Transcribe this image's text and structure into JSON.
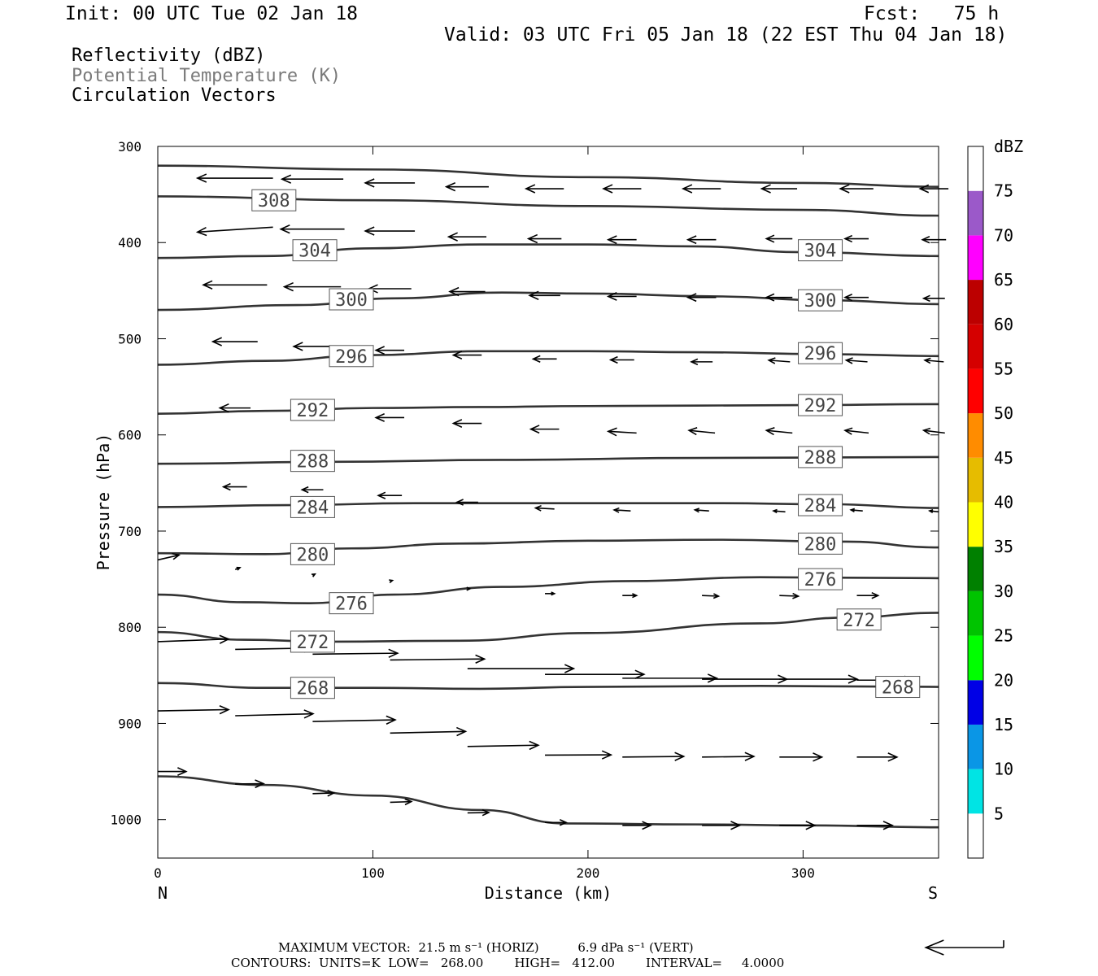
{
  "header": {
    "init": "Init: 00 UTC Tue 02 Jan 18",
    "fcst": "Fcst:   75 h",
    "valid": "Valid: 03 UTC Fri 05 Jan 18 (22 EST Thu 04 Jan 18)",
    "fields": [
      {
        "text": "Reflectivity (dBZ)",
        "color": "#000000"
      },
      {
        "text": "Potential Temperature (K)",
        "color": "#7a7a7a"
      },
      {
        "text": "Circulation Vectors",
        "color": "#000000"
      }
    ]
  },
  "footer": {
    "max_vector_line": "MAXIMUM VECTOR:  21.5 m s⁻¹ (HORIZ)          6.9 dPa s⁻¹ (VERT)",
    "contours_line": "CONTOURS:  UNITS=K  LOW=   268.00        HIGH=   412.00        INTERVAL=     4.0000"
  },
  "chart_data": {
    "type": "cross-section",
    "xlabel": "Distance (km)",
    "ylabel": "Pressure (hPa)",
    "xlim": [
      0,
      363
    ],
    "ylim": [
      1040,
      300
    ],
    "x_ticks": [
      0,
      100,
      200,
      300
    ],
    "y_ticks": [
      300,
      400,
      500,
      600,
      700,
      800,
      900,
      1000
    ],
    "x_end_labels": {
      "left": "N",
      "right": "S"
    },
    "colorbar": {
      "title": "dBZ",
      "ticks": [
        5,
        10,
        15,
        20,
        25,
        30,
        35,
        40,
        45,
        50,
        55,
        60,
        65,
        70,
        75
      ],
      "colors": [
        "#ffffff",
        "#00e4e4",
        "#0a96e6",
        "#0000e6",
        "#00ff00",
        "#00c400",
        "#008000",
        "#ffff00",
        "#e6bc00",
        "#ff8c00",
        "#ff0000",
        "#d50000",
        "#bc0000",
        "#ff00ff",
        "#9b59c9",
        "#ffffff"
      ]
    },
    "theta_contours": [
      {
        "label": "308",
        "points": [
          [
            0,
            320
          ],
          [
            100,
            324
          ],
          [
            200,
            332
          ],
          [
            300,
            338
          ],
          [
            363,
            342
          ]
        ]
      },
      {
        "label": "",
        "points": [
          [
            0,
            352
          ],
          [
            100,
            356
          ],
          [
            200,
            362
          ],
          [
            300,
            366
          ],
          [
            363,
            372
          ]
        ]
      },
      {
        "label": "304",
        "points": [
          [
            0,
            416
          ],
          [
            50,
            414
          ],
          [
            100,
            406
          ],
          [
            150,
            402
          ],
          [
            200,
            402
          ],
          [
            250,
            404
          ],
          [
            300,
            410
          ],
          [
            363,
            414
          ]
        ]
      },
      {
        "label": "300",
        "points": [
          [
            0,
            470
          ],
          [
            65,
            465
          ],
          [
            110,
            458
          ],
          [
            160,
            452
          ],
          [
            200,
            453
          ],
          [
            260,
            456
          ],
          [
            310,
            460
          ],
          [
            363,
            464
          ]
        ]
      },
      {
        "label": "296",
        "points": [
          [
            0,
            527
          ],
          [
            50,
            523
          ],
          [
            100,
            517
          ],
          [
            150,
            513
          ],
          [
            200,
            513
          ],
          [
            250,
            514
          ],
          [
            310,
            516
          ],
          [
            363,
            518
          ]
        ]
      },
      {
        "label": "292",
        "points": [
          [
            0,
            578
          ],
          [
            50,
            575
          ],
          [
            100,
            572
          ],
          [
            150,
            571
          ],
          [
            200,
            570
          ],
          [
            300,
            569
          ],
          [
            363,
            568
          ]
        ]
      },
      {
        "label": "288",
        "points": [
          [
            0,
            630
          ],
          [
            80,
            628
          ],
          [
            160,
            626
          ],
          [
            250,
            624
          ],
          [
            363,
            623
          ]
        ]
      },
      {
        "label": "284",
        "points": [
          [
            0,
            675
          ],
          [
            60,
            673
          ],
          [
            120,
            671
          ],
          [
            200,
            671
          ],
          [
            260,
            671
          ],
          [
            310,
            672
          ],
          [
            363,
            676
          ]
        ]
      },
      {
        "label": "280",
        "points": [
          [
            0,
            723
          ],
          [
            50,
            724
          ],
          [
            90,
            718
          ],
          [
            140,
            713
          ],
          [
            200,
            710
          ],
          [
            260,
            709
          ],
          [
            320,
            711
          ],
          [
            363,
            717
          ]
        ]
      },
      {
        "label": "276",
        "points": [
          [
            0,
            766
          ],
          [
            40,
            774
          ],
          [
            70,
            775
          ],
          [
            110,
            766
          ],
          [
            160,
            758
          ],
          [
            220,
            752
          ],
          [
            280,
            748
          ],
          [
            363,
            749
          ]
        ]
      },
      {
        "label": "272",
        "points": [
          [
            0,
            805
          ],
          [
            40,
            813
          ],
          [
            80,
            815
          ],
          [
            140,
            814
          ],
          [
            200,
            806
          ],
          [
            280,
            796
          ],
          [
            320,
            790
          ],
          [
            363,
            785
          ]
        ]
      },
      {
        "label": "268",
        "points": [
          [
            0,
            858
          ],
          [
            50,
            863
          ],
          [
            100,
            863
          ],
          [
            150,
            864
          ],
          [
            200,
            862
          ],
          [
            280,
            861
          ],
          [
            363,
            862
          ]
        ]
      },
      {
        "label": "",
        "points": [
          [
            0,
            955
          ],
          [
            50,
            964
          ],
          [
            100,
            975
          ],
          [
            150,
            990
          ],
          [
            190,
            1004
          ],
          [
            250,
            1005
          ],
          [
            300,
            1006
          ],
          [
            363,
            1008
          ]
        ]
      }
    ],
    "theta_labels": [
      {
        "text": "308",
        "x": 54,
        "p": 356
      },
      {
        "text": "304",
        "x": 73,
        "p": 408
      },
      {
        "text": "304",
        "x": 308,
        "p": 408
      },
      {
        "text": "300",
        "x": 90,
        "p": 459
      },
      {
        "text": "300",
        "x": 308,
        "p": 460
      },
      {
        "text": "296",
        "x": 90,
        "p": 518
      },
      {
        "text": "296",
        "x": 308,
        "p": 515
      },
      {
        "text": "292",
        "x": 72,
        "p": 574
      },
      {
        "text": "292",
        "x": 308,
        "p": 569
      },
      {
        "text": "288",
        "x": 72,
        "p": 627
      },
      {
        "text": "288",
        "x": 308,
        "p": 623
      },
      {
        "text": "284",
        "x": 72,
        "p": 675
      },
      {
        "text": "284",
        "x": 308,
        "p": 673
      },
      {
        "text": "280",
        "x": 72,
        "p": 724
      },
      {
        "text": "280",
        "x": 308,
        "p": 713
      },
      {
        "text": "276",
        "x": 90,
        "p": 775
      },
      {
        "text": "276",
        "x": 308,
        "p": 750
      },
      {
        "text": "272",
        "x": 72,
        "p": 815
      },
      {
        "text": "272",
        "x": 326,
        "p": 792
      },
      {
        "text": "268",
        "x": 72,
        "p": 863
      },
      {
        "text": "268",
        "x": 344,
        "p": 862
      }
    ],
    "vectors": [
      {
        "x": 36,
        "p": 333,
        "u": -32,
        "w": 0
      },
      {
        "x": 72,
        "p": 334,
        "u": -26,
        "w": 0
      },
      {
        "x": 108,
        "p": 338,
        "u": -21,
        "w": 0
      },
      {
        "x": 144,
        "p": 342,
        "u": -18,
        "w": 0
      },
      {
        "x": 180,
        "p": 344,
        "u": -16,
        "w": 0
      },
      {
        "x": 216,
        "p": 344,
        "u": -16,
        "w": 0
      },
      {
        "x": 253,
        "p": 344,
        "u": -16,
        "w": 0
      },
      {
        "x": 289,
        "p": 344,
        "u": -15,
        "w": 0
      },
      {
        "x": 325,
        "p": 344,
        "u": -14,
        "w": 0
      },
      {
        "x": 361,
        "p": 344,
        "u": -12,
        "w": 0
      },
      {
        "x": 36,
        "p": 384,
        "u": -32,
        "w": -1.5
      },
      {
        "x": 72,
        "p": 386,
        "u": -27,
        "w": 0
      },
      {
        "x": 108,
        "p": 388,
        "u": -21,
        "w": 0
      },
      {
        "x": 144,
        "p": 394,
        "u": -16,
        "w": 0
      },
      {
        "x": 180,
        "p": 396,
        "u": -14,
        "w": 0
      },
      {
        "x": 216,
        "p": 397,
        "u": -12,
        "w": 0
      },
      {
        "x": 253,
        "p": 397,
        "u": -12,
        "w": 0
      },
      {
        "x": 289,
        "p": 396,
        "u": -11,
        "w": 0
      },
      {
        "x": 325,
        "p": 396,
        "u": -10,
        "w": 0
      },
      {
        "x": 361,
        "p": 397,
        "u": -10,
        "w": 0
      },
      {
        "x": 36,
        "p": 444,
        "u": -27,
        "w": 0
      },
      {
        "x": 72,
        "p": 446,
        "u": -24,
        "w": 0
      },
      {
        "x": 108,
        "p": 448,
        "u": -18,
        "w": 0
      },
      {
        "x": 144,
        "p": 451,
        "u": -15,
        "w": 0
      },
      {
        "x": 180,
        "p": 455,
        "u": -13,
        "w": 0
      },
      {
        "x": 216,
        "p": 456,
        "u": -12,
        "w": 0
      },
      {
        "x": 253,
        "p": 457,
        "u": -12,
        "w": 0
      },
      {
        "x": 289,
        "p": 457,
        "u": -11,
        "w": 0
      },
      {
        "x": 325,
        "p": 457,
        "u": -10,
        "w": 0
      },
      {
        "x": 361,
        "p": 458,
        "u": -9,
        "w": 0
      },
      {
        "x": 36,
        "p": 503,
        "u": -19,
        "w": 0
      },
      {
        "x": 72,
        "p": 508,
        "u": -16,
        "w": 0
      },
      {
        "x": 108,
        "p": 512,
        "u": -12,
        "w": 0
      },
      {
        "x": 144,
        "p": 517,
        "u": -12,
        "w": 0
      },
      {
        "x": 180,
        "p": 521,
        "u": -10,
        "w": 0
      },
      {
        "x": 216,
        "p": 522,
        "u": -10,
        "w": 0
      },
      {
        "x": 253,
        "p": 524,
        "u": -9,
        "w": 0
      },
      {
        "x": 289,
        "p": 524,
        "u": -9,
        "w": 0.5
      },
      {
        "x": 325,
        "p": 524,
        "u": -9,
        "w": 0.5
      },
      {
        "x": 361,
        "p": 524,
        "u": -8,
        "w": 0.5
      },
      {
        "x": 36,
        "p": 572,
        "u": -13,
        "w": 0
      },
      {
        "x": 72,
        "p": 576,
        "u": -11,
        "w": 0
      },
      {
        "x": 108,
        "p": 582,
        "u": -12,
        "w": 0
      },
      {
        "x": 144,
        "p": 588,
        "u": -12,
        "w": 0
      },
      {
        "x": 180,
        "p": 594,
        "u": -12,
        "w": 0
      },
      {
        "x": 216,
        "p": 598,
        "u": -12,
        "w": 0.5
      },
      {
        "x": 253,
        "p": 598,
        "u": -11,
        "w": 0.8
      },
      {
        "x": 289,
        "p": 598,
        "u": -11,
        "w": 0.8
      },
      {
        "x": 325,
        "p": 598,
        "u": -10,
        "w": 0.8
      },
      {
        "x": 361,
        "p": 598,
        "u": -9,
        "w": 0.8
      },
      {
        "x": 36,
        "p": 654,
        "u": -10,
        "w": 0
      },
      {
        "x": 72,
        "p": 657,
        "u": -9,
        "w": 0
      },
      {
        "x": 108,
        "p": 663,
        "u": -10,
        "w": 0
      },
      {
        "x": 144,
        "p": 670,
        "u": -9,
        "w": 0
      },
      {
        "x": 180,
        "p": 677,
        "u": -8,
        "w": 0.3
      },
      {
        "x": 216,
        "p": 679,
        "u": -7,
        "w": 0.3
      },
      {
        "x": 253,
        "p": 679,
        "u": -6,
        "w": 0.3
      },
      {
        "x": 289,
        "p": 680,
        "u": -5,
        "w": 0.3
      },
      {
        "x": 325,
        "p": 679,
        "u": -5,
        "w": 0.3
      },
      {
        "x": 361,
        "p": 680,
        "u": -4,
        "w": 0.3
      },
      {
        "x": 0,
        "p": 730,
        "u": 9,
        "w": 1.5
      },
      {
        "x": 36,
        "p": 740,
        "u": 2,
        "w": 0.6
      },
      {
        "x": 72,
        "p": 746,
        "u": 1,
        "w": 0.4
      },
      {
        "x": 108,
        "p": 752,
        "u": 1,
        "w": 0.2
      },
      {
        "x": 144,
        "p": 760,
        "u": 1,
        "w": 0
      },
      {
        "x": 180,
        "p": 765,
        "u": 4,
        "w": 0
      },
      {
        "x": 216,
        "p": 767,
        "u": 6,
        "w": 0
      },
      {
        "x": 253,
        "p": 767,
        "u": 7,
        "w": -0.2
      },
      {
        "x": 289,
        "p": 767,
        "u": 8,
        "w": -0.2
      },
      {
        "x": 325,
        "p": 767,
        "u": 9,
        "w": 0
      },
      {
        "x": 0,
        "p": 815,
        "u": 30,
        "w": 0.8
      },
      {
        "x": 36,
        "p": 823,
        "u": 33,
        "w": 0.4
      },
      {
        "x": 72,
        "p": 828,
        "u": 36,
        "w": 0.3
      },
      {
        "x": 108,
        "p": 834,
        "u": 40,
        "w": 0.3
      },
      {
        "x": 144,
        "p": 843,
        "u": 45,
        "w": 0
      },
      {
        "x": 180,
        "p": 849,
        "u": 42,
        "w": 0
      },
      {
        "x": 216,
        "p": 853,
        "u": 40,
        "w": 0
      },
      {
        "x": 253,
        "p": 854,
        "u": 36,
        "w": 0
      },
      {
        "x": 289,
        "p": 854,
        "u": 33,
        "w": 0
      },
      {
        "x": 325,
        "p": 855,
        "u": 24,
        "w": 0
      },
      {
        "x": 325,
        "p": 855,
        "u": 0,
        "w": 0
      },
      {
        "x": 0,
        "p": 887,
        "u": 30,
        "w": 0.4
      },
      {
        "x": 36,
        "p": 892,
        "u": 33,
        "w": 0.6
      },
      {
        "x": 72,
        "p": 898,
        "u": 35,
        "w": 0.5
      },
      {
        "x": 108,
        "p": 910,
        "u": 32,
        "w": 0.5
      },
      {
        "x": 144,
        "p": 924,
        "u": 30,
        "w": 0.4
      },
      {
        "x": 180,
        "p": 933,
        "u": 28,
        "w": 0.1
      },
      {
        "x": 216,
        "p": 935,
        "u": 26,
        "w": 0.2
      },
      {
        "x": 253,
        "p": 935,
        "u": 22,
        "w": 0.2
      },
      {
        "x": 289,
        "p": 935,
        "u": 18,
        "w": 0
      },
      {
        "x": 325,
        "p": 935,
        "u": 17,
        "w": 0
      },
      {
        "x": 0,
        "p": 950,
        "u": 12,
        "w": 0
      },
      {
        "x": 36,
        "p": 963,
        "u": 12,
        "w": 0.1
      },
      {
        "x": 72,
        "p": 973,
        "u": 9,
        "w": 0.2
      },
      {
        "x": 108,
        "p": 982,
        "u": 9,
        "w": 0.2
      },
      {
        "x": 144,
        "p": 993,
        "u": 9,
        "w": 0.1
      },
      {
        "x": 180,
        "p": 1003,
        "u": 9,
        "w": 0
      },
      {
        "x": 216,
        "p": 1006,
        "u": 12,
        "w": 0
      },
      {
        "x": 253,
        "p": 1006,
        "u": 16,
        "w": 0
      },
      {
        "x": 289,
        "p": 1006,
        "u": 15,
        "w": 0
      },
      {
        "x": 325,
        "p": 1006,
        "u": 15,
        "w": 0
      }
    ],
    "reference_vector": {
      "u": -21.5,
      "w": 6.9
    }
  }
}
